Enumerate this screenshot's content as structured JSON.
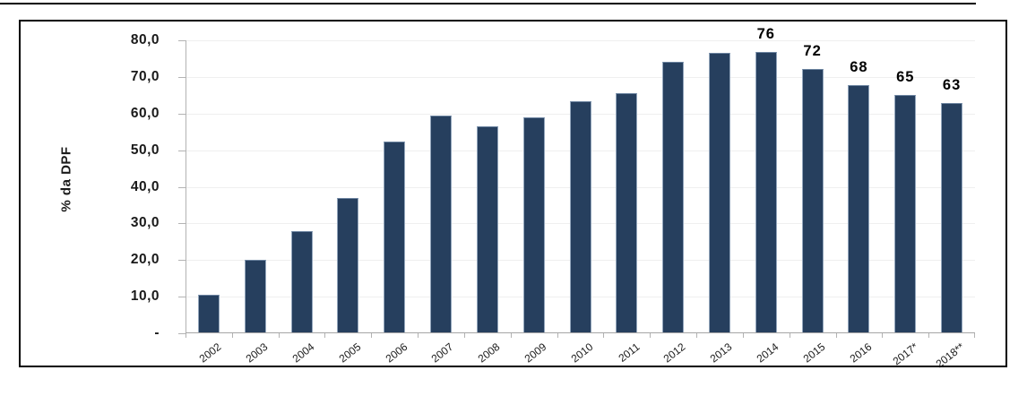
{
  "chart_data": {
    "type": "bar",
    "title": "",
    "xlabel": "",
    "ylabel": "% da DPF",
    "categories": [
      "2002",
      "2003",
      "2004",
      "2005",
      "2006",
      "2007",
      "2008",
      "2009",
      "2010",
      "2011",
      "2012",
      "2013",
      "2014",
      "2015",
      "2016",
      "2017*",
      "2018**"
    ],
    "values": [
      10.4,
      19.7,
      27.7,
      36.6,
      52.2,
      59.1,
      56.3,
      58.8,
      63.1,
      65.4,
      73.9,
      76.4,
      76.5,
      71.9,
      67.6,
      64.8,
      62.6
    ],
    "data_labels": [
      "",
      "",
      "",
      "",
      "",
      "",
      "",
      "",
      "",
      "",
      "",
      "",
      "76",
      "72",
      "68",
      "65",
      "63"
    ],
    "y_ticks": [
      {
        "value": 80,
        "label": "80,0"
      },
      {
        "value": 70,
        "label": "70,0"
      },
      {
        "value": 60,
        "label": "60,0"
      },
      {
        "value": 50,
        "label": "50,0"
      },
      {
        "value": 40,
        "label": "40,0"
      },
      {
        "value": 30,
        "label": "30,0"
      },
      {
        "value": 20,
        "label": "20,0"
      },
      {
        "value": 10,
        "label": "10,0"
      },
      {
        "value": 0,
        "label": "-"
      }
    ],
    "ylim": [
      0,
      80
    ],
    "grid": true,
    "legend": "none"
  },
  "colors": {
    "bar_fill": "#263f5e",
    "bar_edge": "#93a6bc",
    "gridline": "#efefef",
    "axis_line": "#b3b3b3",
    "text": "#1a1a1a",
    "frame_border": "#000000"
  }
}
